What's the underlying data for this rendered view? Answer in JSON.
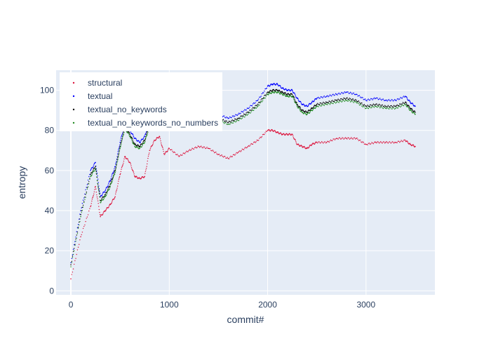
{
  "chart_data": {
    "type": "scatter",
    "title": "",
    "xlabel": "commit#",
    "ylabel": "entropy",
    "xlim": [
      -150,
      3700
    ],
    "ylim": [
      -2,
      110
    ],
    "xticks": [
      0,
      1000,
      2000,
      3000
    ],
    "yticks": [
      0,
      20,
      40,
      60,
      80,
      100
    ],
    "x_tick_labels": [
      "0",
      "1000",
      "2000",
      "3000"
    ],
    "y_tick_labels": [
      "0",
      "20",
      "40",
      "60",
      "80",
      "100"
    ],
    "grid": true,
    "legend_position": "top-left",
    "plot_background": "#e5ecf6",
    "marker_size": 1,
    "series": [
      {
        "name": "structural",
        "color": "#dc143c",
        "x": [
          0,
          100,
          200,
          250,
          300,
          350,
          400,
          450,
          500,
          550,
          600,
          650,
          700,
          750,
          800,
          850,
          900,
          950,
          1000,
          1100,
          1200,
          1300,
          1400,
          1500,
          1600,
          1700,
          1800,
          1900,
          2000,
          2050,
          2100,
          2150,
          2200,
          2250,
          2300,
          2350,
          2400,
          2450,
          2500,
          2600,
          2700,
          2800,
          2900,
          3000,
          3100,
          3200,
          3300,
          3400,
          3450,
          3500
        ],
        "y": [
          6,
          27,
          42,
          52,
          37,
          40,
          43,
          47,
          58,
          67,
          64,
          57,
          56,
          57,
          70,
          75,
          77,
          68,
          71,
          67,
          70,
          72,
          71,
          68,
          66,
          69,
          72,
          75,
          80,
          80,
          79,
          78,
          78,
          78,
          73,
          72,
          71,
          73,
          74,
          74,
          76,
          76,
          76,
          73,
          74,
          74,
          74,
          75,
          73,
          72
        ]
      },
      {
        "name": "textual",
        "color": "#0000ff",
        "x": [
          0,
          100,
          200,
          250,
          300,
          350,
          400,
          450,
          500,
          550,
          600,
          650,
          700,
          750,
          800,
          850,
          900,
          950,
          1000,
          1100,
          1200,
          1300,
          1400,
          1500,
          1600,
          1700,
          1800,
          1900,
          2000,
          2050,
          2100,
          2150,
          2200,
          2250,
          2300,
          2350,
          2400,
          2450,
          2500,
          2600,
          2700,
          2800,
          2900,
          3000,
          3100,
          3200,
          3300,
          3400,
          3450,
          3500
        ],
        "y": [
          14,
          40,
          60,
          64,
          47,
          50,
          55,
          62,
          74,
          84,
          80,
          76,
          74,
          77,
          85,
          88,
          89,
          88,
          87,
          88,
          90,
          91,
          89,
          88,
          86,
          88,
          91,
          95,
          102,
          103,
          103,
          101,
          100,
          100,
          96,
          93,
          92,
          94,
          96,
          97,
          98,
          99,
          98,
          95,
          96,
          95,
          95,
          97,
          94,
          92
        ]
      },
      {
        "name": "textual_no_keywords",
        "color": "#000000",
        "x": [
          0,
          100,
          200,
          250,
          300,
          350,
          400,
          450,
          500,
          550,
          600,
          650,
          700,
          750,
          800,
          850,
          900,
          950,
          1000,
          1100,
          1200,
          1300,
          1400,
          1500,
          1600,
          1700,
          1800,
          1900,
          2000,
          2050,
          2100,
          2150,
          2200,
          2250,
          2300,
          2350,
          2400,
          2450,
          2500,
          2600,
          2700,
          2800,
          2900,
          3000,
          3100,
          3200,
          3300,
          3400,
          3450,
          3500
        ],
        "y": [
          13,
          38,
          58,
          62,
          45,
          48,
          53,
          60,
          72,
          82,
          78,
          73,
          72,
          75,
          83,
          86,
          87,
          86,
          85,
          86,
          88,
          89,
          87,
          86,
          84,
          86,
          89,
          93,
          99,
          100,
          100,
          99,
          98,
          98,
          93,
          90,
          89,
          91,
          93,
          94,
          95,
          96,
          95,
          92,
          93,
          92,
          92,
          94,
          91,
          89
        ]
      },
      {
        "name": "textual_no_keywords_no_numbers",
        "color": "#228b22",
        "x": [
          0,
          100,
          200,
          250,
          300,
          350,
          400,
          450,
          500,
          550,
          600,
          650,
          700,
          750,
          800,
          850,
          900,
          950,
          1000,
          1100,
          1200,
          1300,
          1400,
          1500,
          1600,
          1700,
          1800,
          1900,
          2000,
          2050,
          2100,
          2150,
          2200,
          2250,
          2300,
          2350,
          2400,
          2450,
          2500,
          2600,
          2700,
          2800,
          2900,
          3000,
          3100,
          3200,
          3300,
          3400,
          3450,
          3500
        ],
        "y": [
          12,
          37,
          57,
          61,
          44,
          47,
          52,
          59,
          71,
          81,
          77,
          72,
          71,
          74,
          82,
          85,
          86,
          85,
          84,
          85,
          87,
          88,
          86,
          85,
          83,
          85,
          88,
          92,
          98,
          99,
          99,
          98,
          97,
          97,
          92,
          89,
          88,
          90,
          92,
          93,
          94,
          95,
          94,
          91,
          92,
          91,
          91,
          93,
          90,
          88
        ]
      }
    ]
  }
}
